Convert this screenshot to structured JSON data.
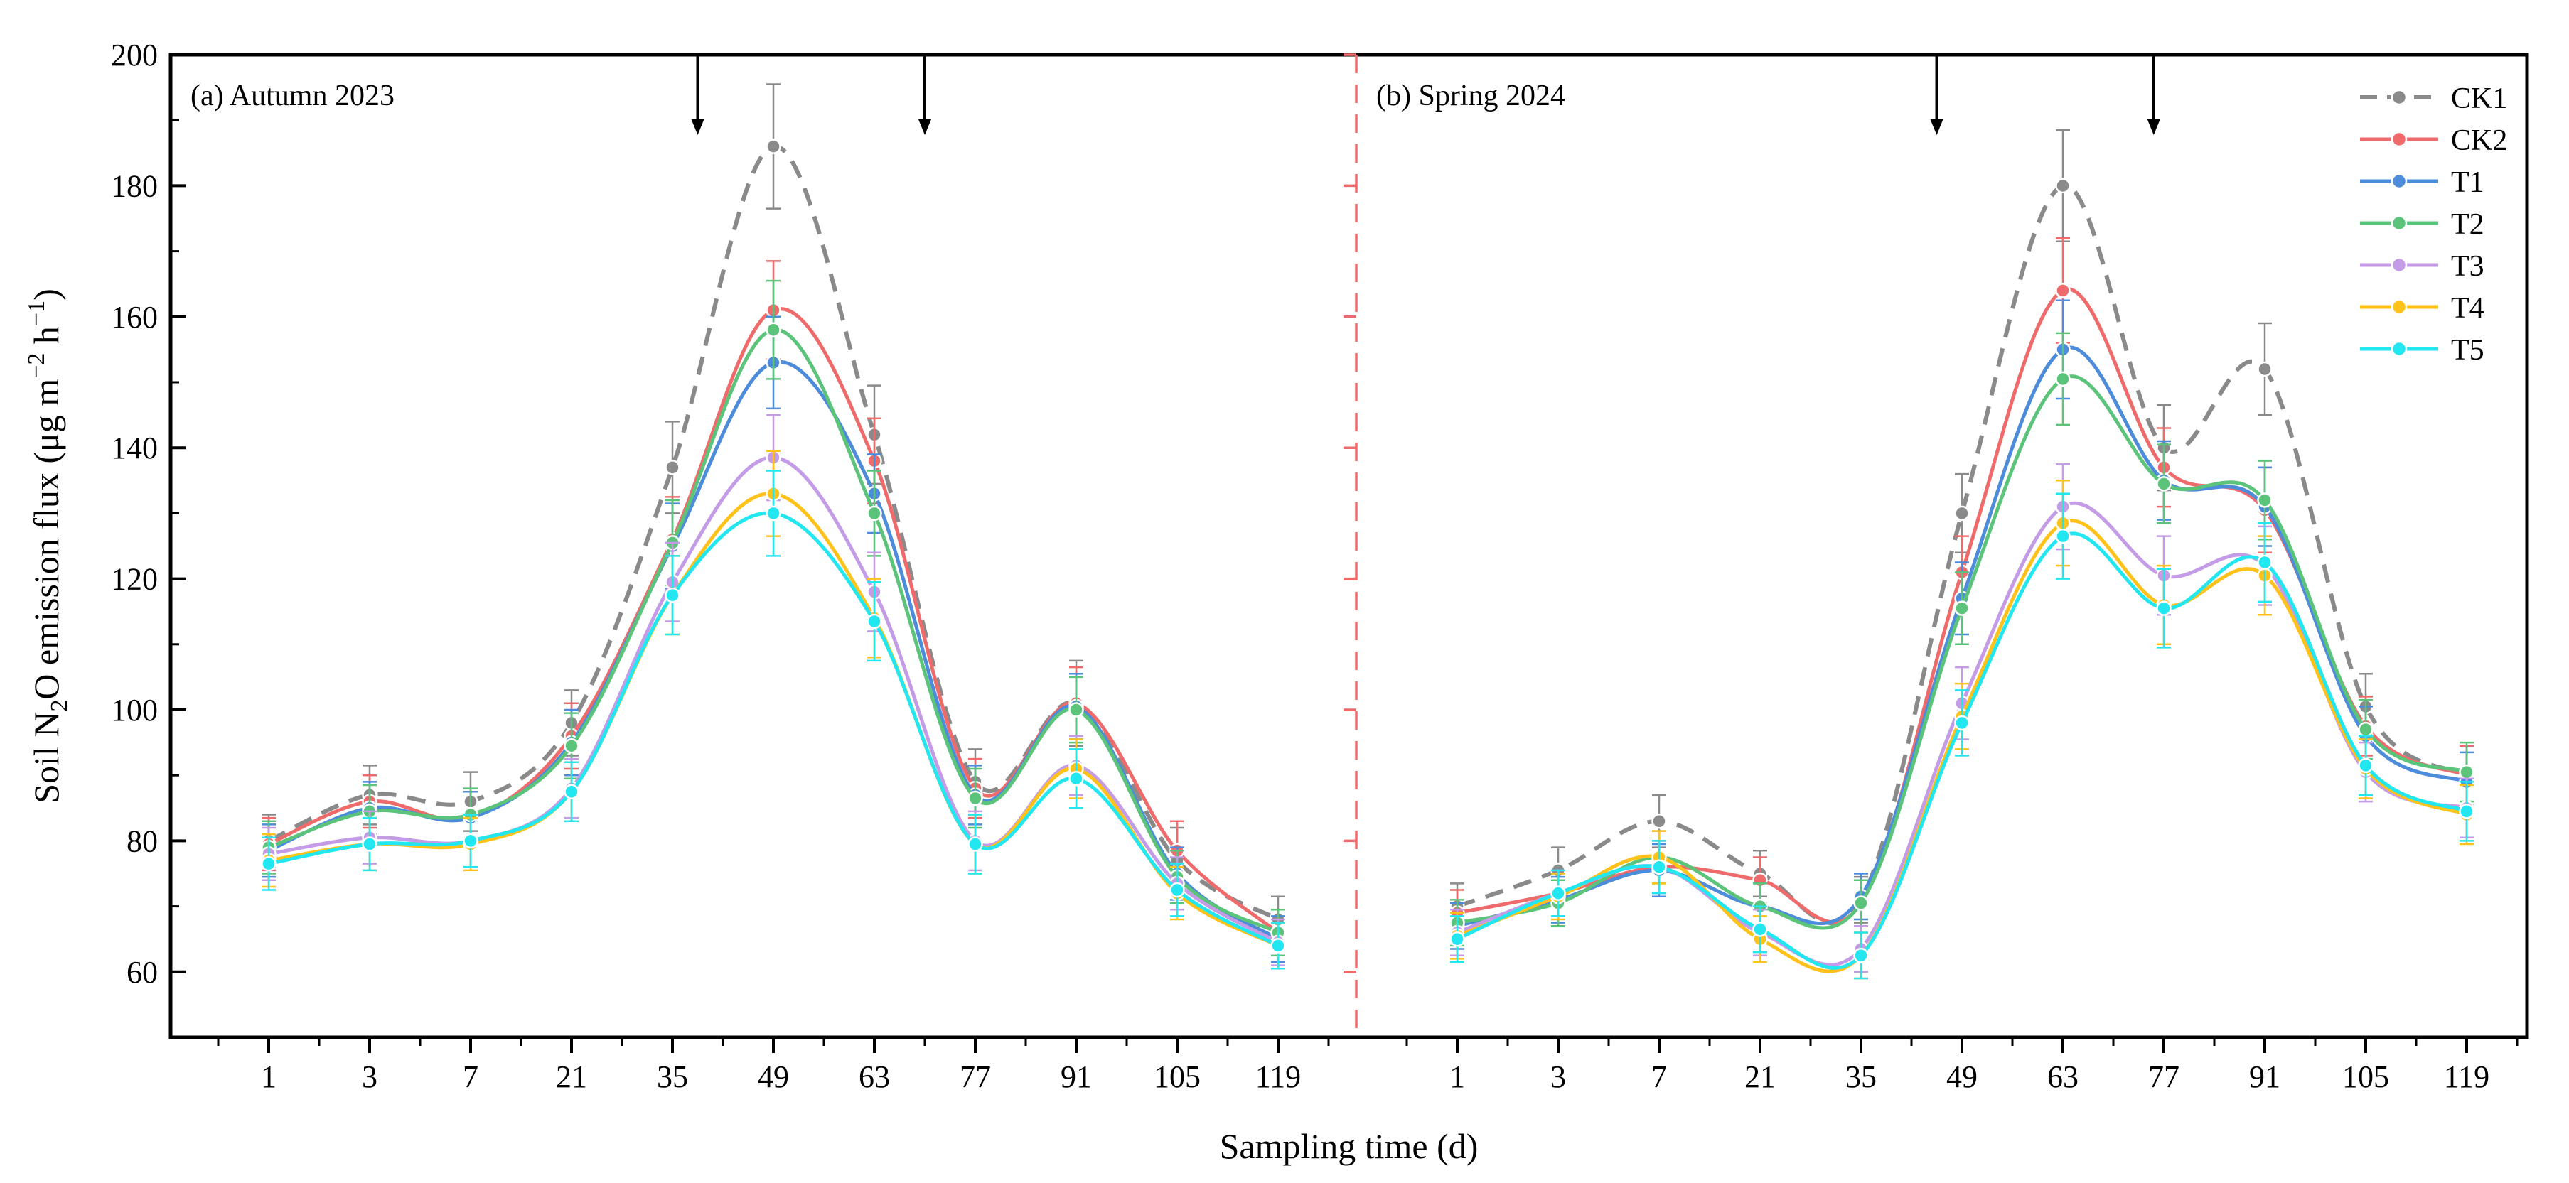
{
  "chart_data": {
    "type": "line",
    "ylabel": "Soil N₂O emission flux (μg m⁻² h⁻¹)",
    "ylabel_parts": {
      "pre": "Soil N",
      "sub": "2",
      "mid": "O emission flux (μg m",
      "sup1": "−2",
      "mid2": " h",
      "sup2": "−1",
      "post": ")"
    },
    "xlabel": "Sampling time (d)",
    "ylim": [
      50,
      200
    ],
    "yticks": [
      60,
      80,
      100,
      120,
      140,
      160,
      180,
      200
    ],
    "smooth": true,
    "panels": [
      {
        "title": "(a) Autumn 2023",
        "categories": [
          "1",
          "3",
          "7",
          "21",
          "35",
          "49",
          "63",
          "77",
          "91",
          "105",
          "119"
        ],
        "arrows_after_index": [
          4.25,
          6.5
        ],
        "series": [
          {
            "name": "CK1",
            "values": [
              80,
              87,
              86,
              98,
              137,
              186,
              142,
              89,
              101,
              77,
              68
            ],
            "err": [
              4,
              4.5,
              4.5,
              5,
              7,
              9.5,
              7.5,
              5,
              6.5,
              5,
              3.5
            ]
          },
          {
            "name": "CK2",
            "values": [
              79.5,
              86,
              83.5,
              96,
              126,
              161,
              138,
              88,
              101,
              78.5,
              66
            ],
            "err": [
              4,
              4,
              4,
              5,
              6.5,
              7.5,
              6.5,
              4.5,
              5.5,
              4.5,
              3.5
            ]
          },
          {
            "name": "T1",
            "values": [
              78.5,
              85,
              83.5,
              95,
              125,
              153,
              133,
              87,
              100.5,
              75,
              65
            ],
            "err": [
              4,
              4,
              4,
              5,
              6.5,
              7,
              6,
              4.5,
              5,
              4,
              3.5
            ]
          },
          {
            "name": "T2",
            "values": [
              79,
              84.5,
              84,
              94.5,
              125.5,
              158,
              130,
              86.5,
              100,
              74.5,
              66
            ],
            "err": [
              4,
              4,
              4,
              5,
              6.5,
              7.5,
              6.5,
              4.5,
              5,
              4,
              3.5
            ]
          },
          {
            "name": "T3",
            "values": [
              78,
              80.5,
              80,
              88,
              119.5,
              138.5,
              118,
              80,
              91.5,
              73.5,
              64.5
            ],
            "err": [
              4,
              4,
              4,
              4.5,
              6,
              6.5,
              6,
              4.5,
              4.5,
              4,
              3.5
            ]
          },
          {
            "name": "T4",
            "values": [
              77,
              79.5,
              79.5,
              87.5,
              117.5,
              133,
              114,
              79.5,
              91,
              72,
              64
            ],
            "err": [
              4,
              4,
              4,
              4.5,
              6,
              6.5,
              6,
              4.5,
              4.5,
              4,
              3.5
            ]
          },
          {
            "name": "T5",
            "values": [
              76.5,
              79.5,
              80,
              87.5,
              117.5,
              130,
              113.5,
              79.5,
              89.5,
              72.5,
              64
            ],
            "err": [
              4,
              4,
              4,
              4.5,
              6,
              6.5,
              6,
              4.5,
              4.5,
              4,
              3.5
            ]
          }
        ]
      },
      {
        "title": "(b) Spring 2024",
        "categories": [
          "1",
          "3",
          "7",
          "21",
          "35",
          "49",
          "63",
          "77",
          "91",
          "105",
          "119"
        ],
        "arrows_after_index": [
          4.75,
          6.9
        ],
        "series": [
          {
            "name": "CK1",
            "values": [
              70,
              75.5,
              83,
              75,
              71,
              130,
              180,
              140,
              152,
              100.5,
              90
            ],
            "err": [
              3.5,
              3.5,
              4,
              3.5,
              3.5,
              6,
              8.5,
              6.5,
              7,
              5,
              4.5
            ]
          },
          {
            "name": "CK2",
            "values": [
              69,
              72,
              76,
              74,
              70.5,
              121,
              164,
              137,
              130.5,
              97.5,
              90
            ],
            "err": [
              3.5,
              3.5,
              4,
              3.5,
              3.5,
              5.5,
              8,
              6,
              6.5,
              4.5,
              4.5
            ]
          },
          {
            "name": "T1",
            "values": [
              67,
              71,
              75.5,
              70,
              71.5,
              117,
              155,
              135,
              131,
              96,
              89
            ],
            "err": [
              3.5,
              3.5,
              4,
              3.5,
              3.5,
              5.5,
              7.5,
              6,
              6,
              4.5,
              4.5
            ]
          },
          {
            "name": "T2",
            "values": [
              67.5,
              70.5,
              77.5,
              70,
              70.5,
              115.5,
              150.5,
              134.5,
              132,
              97,
              90.5
            ],
            "err": [
              3.5,
              3.5,
              4,
              3.5,
              3.5,
              5.5,
              7,
              6,
              6,
              4.5,
              4.5
            ]
          },
          {
            "name": "T3",
            "values": [
              66,
              72,
              76,
              66,
              63.5,
              101,
              131,
              120.5,
              122,
              90.5,
              85
            ],
            "err": [
              3.5,
              3.5,
              4,
              3.5,
              3.5,
              5.5,
              6.5,
              6,
              6,
              4.5,
              4.5
            ]
          },
          {
            "name": "T4",
            "values": [
              65.5,
              71.5,
              77.5,
              65,
              62.5,
              99,
              128.5,
              116,
              120.5,
              91,
              84
            ],
            "err": [
              3.5,
              3.5,
              4,
              3.5,
              3.5,
              5,
              6.5,
              6,
              6,
              4.5,
              4.5
            ]
          },
          {
            "name": "T5",
            "values": [
              65,
              72,
              76,
              66.5,
              62.5,
              98,
              126.5,
              115.5,
              122.5,
              91.5,
              84.5
            ],
            "err": [
              3.5,
              3.5,
              4,
              3.5,
              3.5,
              5,
              6.5,
              6,
              6,
              4.5,
              4.5
            ]
          }
        ]
      }
    ],
    "legend": [
      {
        "name": "CK1",
        "color": "#8a8a8a",
        "dashed": true
      },
      {
        "name": "CK2",
        "color": "#ef6b6b",
        "dashed": false
      },
      {
        "name": "T1",
        "color": "#4d8bdb",
        "dashed": false
      },
      {
        "name": "T2",
        "color": "#5cc47a",
        "dashed": false
      },
      {
        "name": "T3",
        "color": "#c39be6",
        "dashed": false
      },
      {
        "name": "T4",
        "color": "#ffc21a",
        "dashed": false
      },
      {
        "name": "T5",
        "color": "#22e6f0",
        "dashed": false
      }
    ],
    "legend_position": "top-right",
    "divider_color": "#ef6b6b"
  }
}
